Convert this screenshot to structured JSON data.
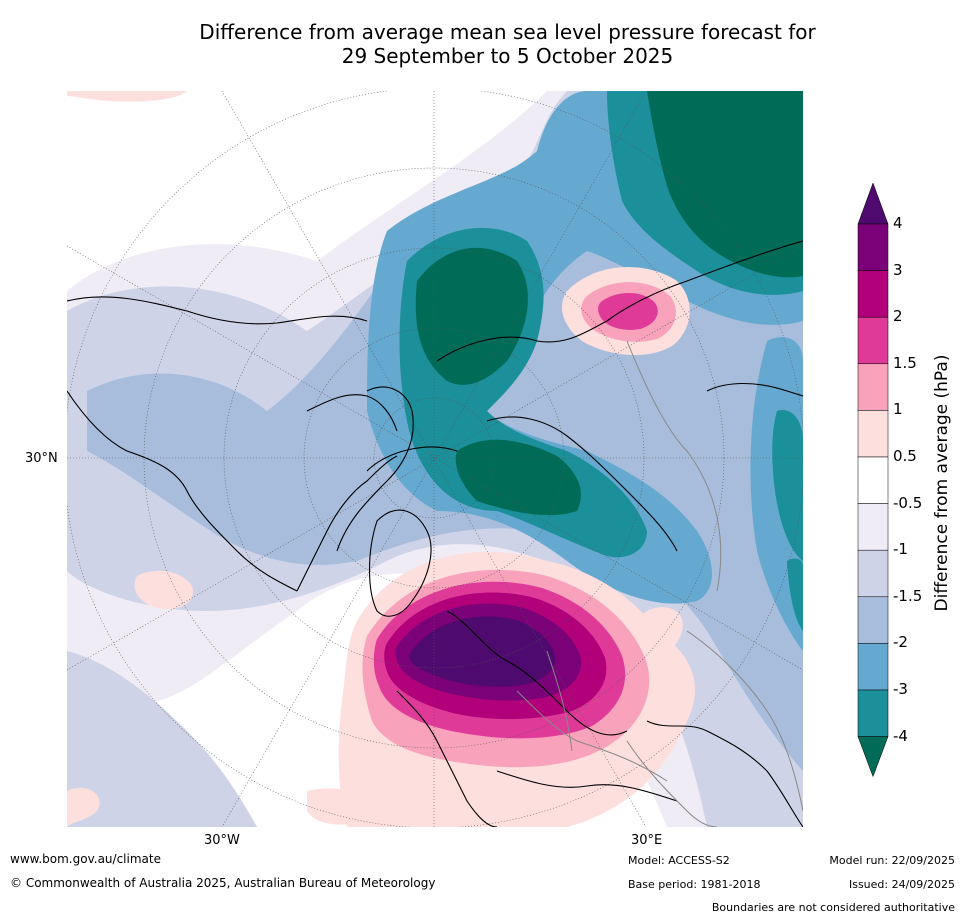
{
  "title": {
    "line1": "Difference from average mean sea level pressure forecast for",
    "line2": "29 September to 5 October 2025"
  },
  "map": {
    "projection": "north polar stereographic",
    "lat_label": "30°N",
    "lon_labels": [
      "30°W",
      "30°E"
    ]
  },
  "colorbar": {
    "title": "Difference from average (hPa)",
    "levels": [
      "-4",
      "-3",
      "-2",
      "-1.5",
      "-1",
      "-0.5",
      "0.5",
      "1",
      "1.5",
      "2",
      "3",
      "4"
    ],
    "colors": {
      "lt_-4": "#006c57",
      "-4_-3": "#1b8f9a",
      "-3_-2": "#66a9d0",
      "-2_-1.5": "#a8bddb",
      "-1.5_-1": "#cfd3e7",
      "-1_-0.5": "#f0ecf5",
      "-0.5_0.5": "#ffffff",
      "0.5_1": "#fde0dd",
      "1_1.5": "#f9a2bb",
      "1.5_2": "#e03a98",
      "2_3": "#b1007a",
      "3_4": "#7a0177",
      "gt_4": "#4e0a6e"
    }
  },
  "footer": {
    "website": "www.bom.gov.au/climate",
    "copyright": "© Commonwealth of Australia 2025, Australian Bureau of Meteorology",
    "model": "Model: ACCESS-S2",
    "base_period": "Base period: 1981-2018",
    "model_run": "Model run: 22/09/2025",
    "issued": "Issued: 24/09/2025",
    "disclaimer": "Boundaries are not considered authoritative"
  }
}
